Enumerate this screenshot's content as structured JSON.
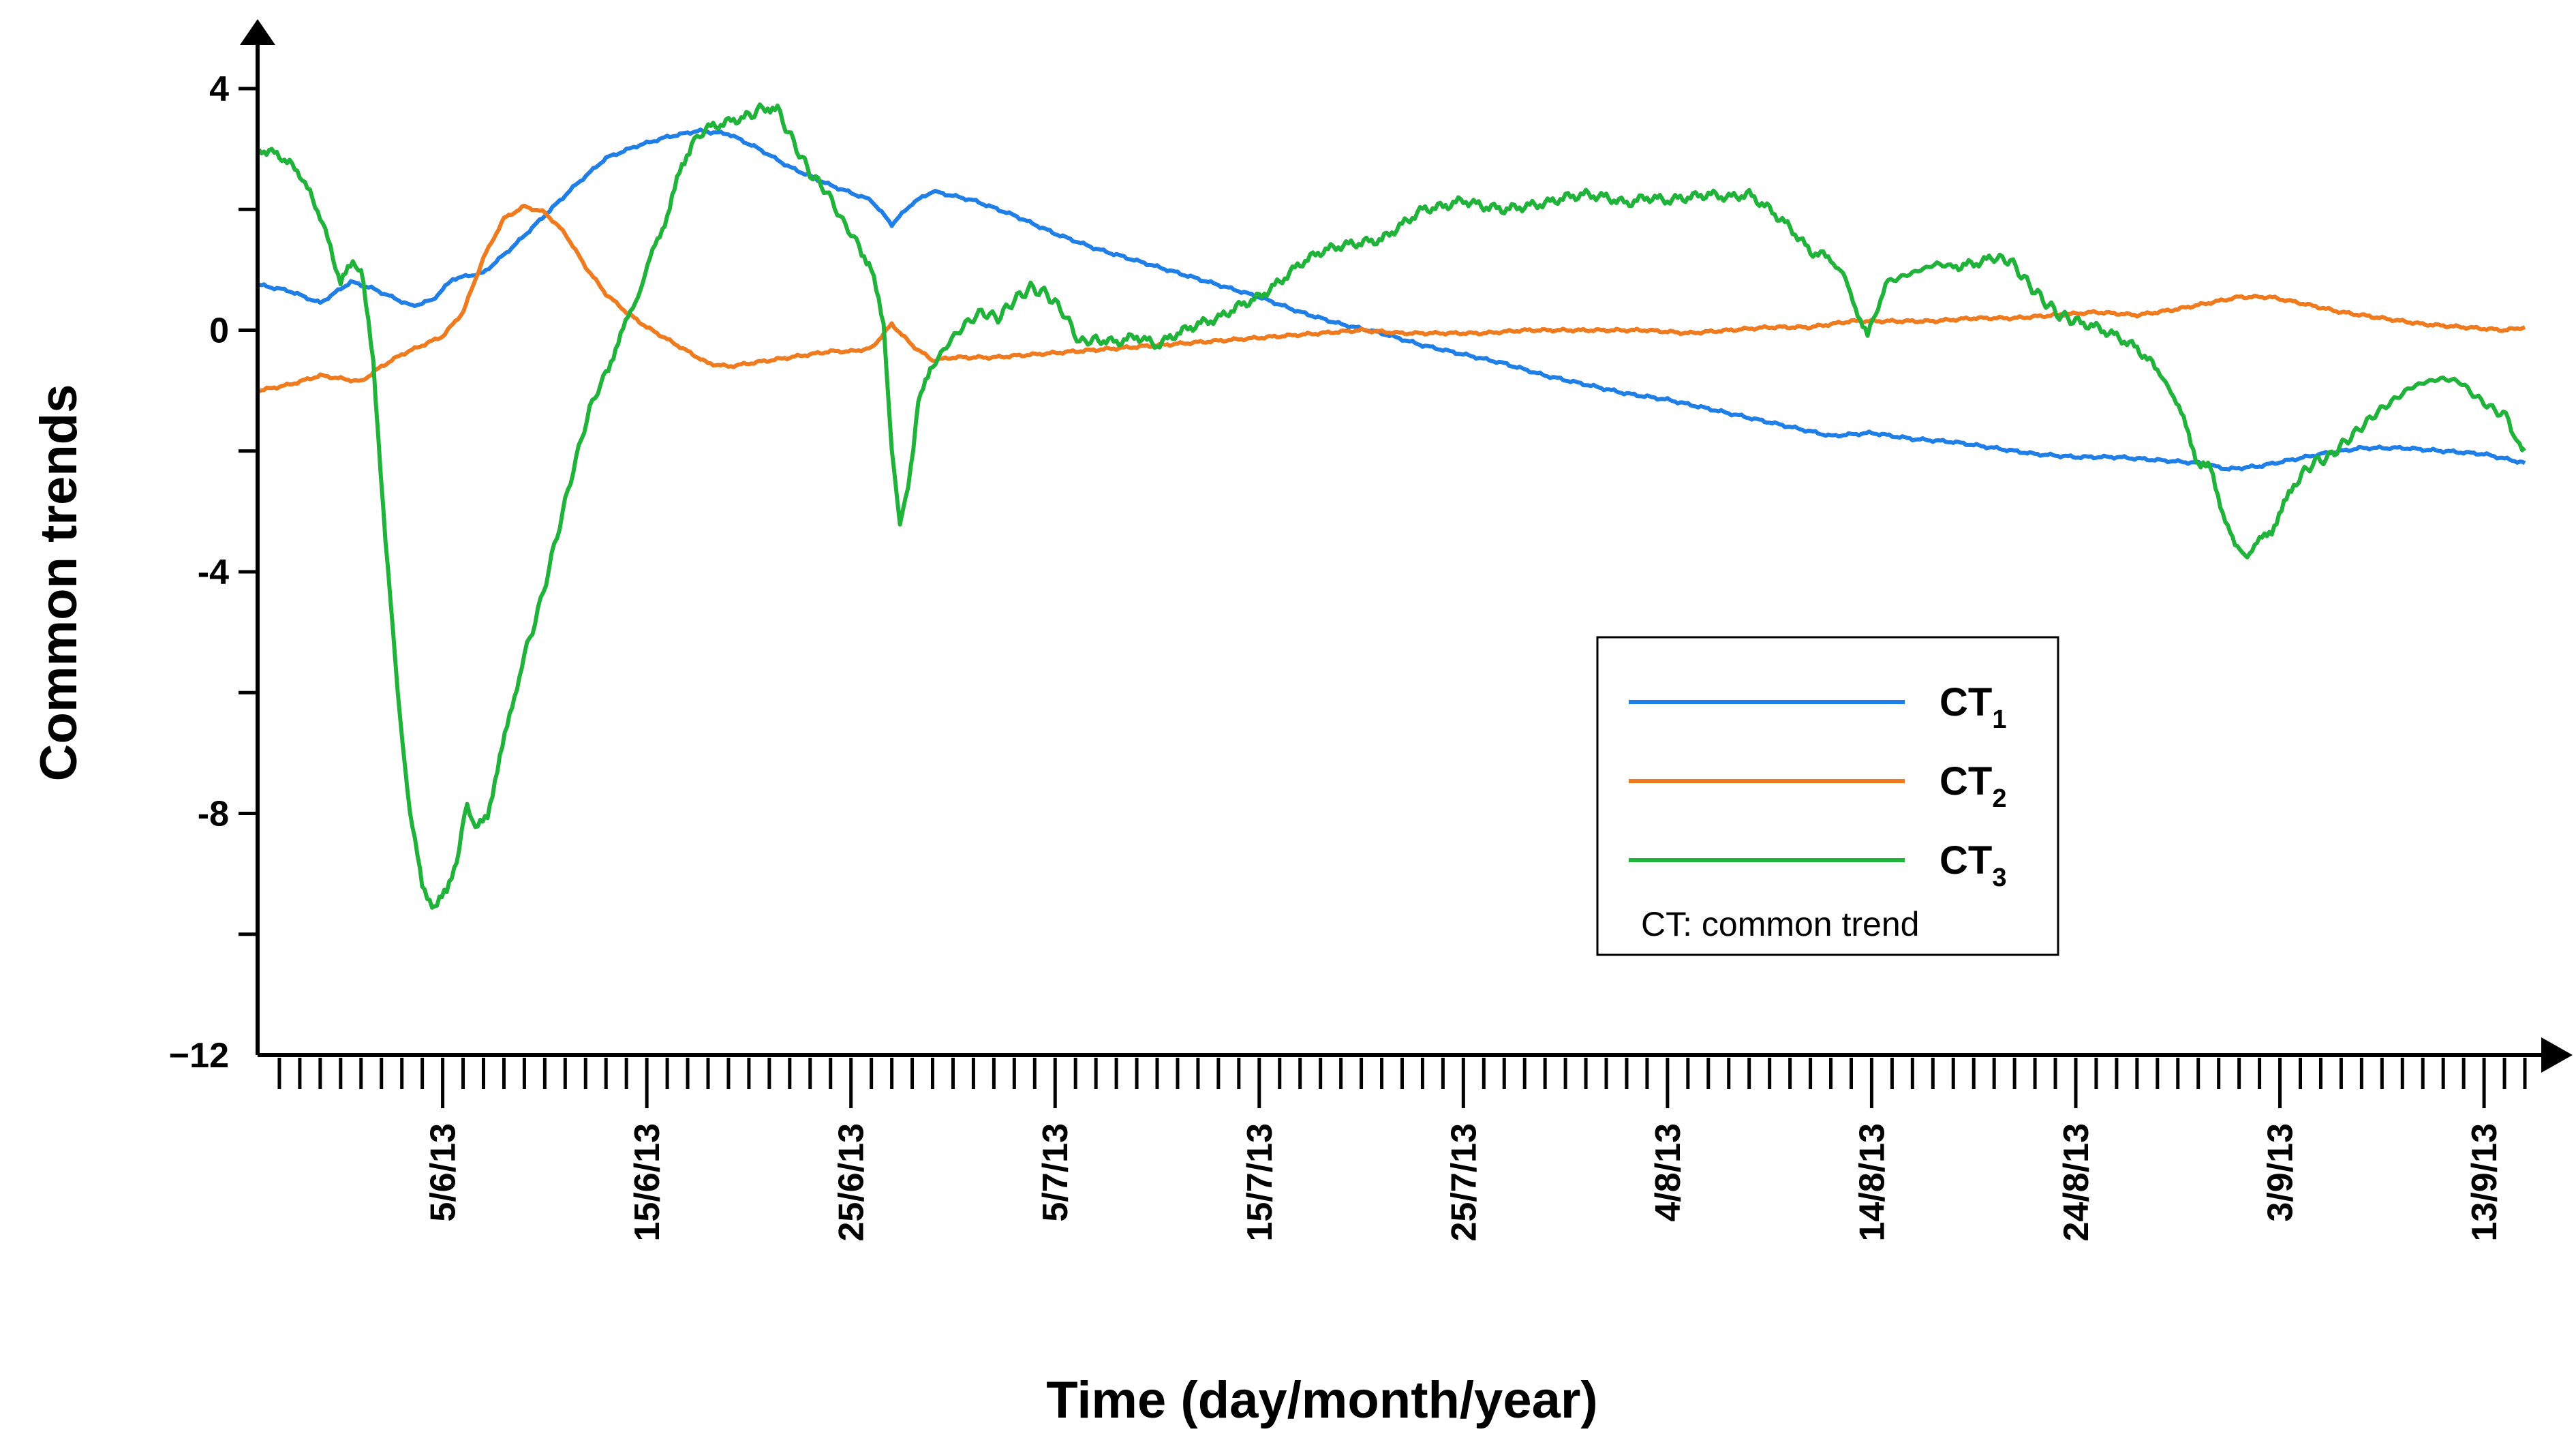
{
  "chart_data": {
    "type": "line",
    "title": "",
    "xlabel": "Time (day/month/year)",
    "ylabel": "Common trends",
    "ylim": [
      -12,
      4.5
    ],
    "yticks": [
      4,
      0,
      -4,
      -8,
      -12
    ],
    "ytick_labels": [
      "4",
      "0",
      "-4",
      "-8",
      "−12"
    ],
    "x_unit": "days since 27/5/13",
    "xlim": [
      0,
      111
    ],
    "xticks_major": [
      {
        "day": 9,
        "label": "5/6/13"
      },
      {
        "day": 19,
        "label": "15/6/13"
      },
      {
        "day": 29,
        "label": "25/6/13"
      },
      {
        "day": 39,
        "label": "5/7/13"
      },
      {
        "day": 49,
        "label": "15/7/13"
      },
      {
        "day": 59,
        "label": "25/7/13"
      },
      {
        "day": 69,
        "label": "4/8/13"
      },
      {
        "day": 79,
        "label": "14/8/13"
      },
      {
        "day": 89,
        "label": "24/8/13"
      },
      {
        "day": 99,
        "label": "3/9/13"
      },
      {
        "day": 109,
        "label": "13/9/13"
      }
    ],
    "legend_position": "lower-right",
    "legend_note": "CT: common trend",
    "series": [
      {
        "name": "CT",
        "subscript": "1",
        "color": "#1f7fe6",
        "points": [
          [
            0,
            0.75
          ],
          [
            1.5,
            0.65
          ],
          [
            3,
            0.45
          ],
          [
            4.5,
            0.8
          ],
          [
            5.5,
            0.7
          ],
          [
            6.5,
            0.55
          ],
          [
            7.5,
            0.4
          ],
          [
            8.5,
            0.5
          ],
          [
            9.5,
            0.85
          ],
          [
            11,
            0.95
          ],
          [
            12.5,
            1.4
          ],
          [
            14,
            1.9
          ],
          [
            15.5,
            2.4
          ],
          [
            17,
            2.85
          ],
          [
            18.5,
            3.05
          ],
          [
            20,
            3.2
          ],
          [
            21.5,
            3.3
          ],
          [
            23,
            3.25
          ],
          [
            24.5,
            3.0
          ],
          [
            26,
            2.7
          ],
          [
            28,
            2.4
          ],
          [
            30,
            2.15
          ],
          [
            31,
            1.75
          ],
          [
            32,
            2.1
          ],
          [
            33,
            2.3
          ],
          [
            35,
            2.15
          ],
          [
            37,
            1.9
          ],
          [
            39,
            1.6
          ],
          [
            41,
            1.35
          ],
          [
            43,
            1.15
          ],
          [
            45,
            0.95
          ],
          [
            47,
            0.75
          ],
          [
            49,
            0.55
          ],
          [
            51,
            0.3
          ],
          [
            53,
            0.1
          ],
          [
            55,
            -0.05
          ],
          [
            57,
            -0.25
          ],
          [
            59,
            -0.4
          ],
          [
            61,
            -0.55
          ],
          [
            63,
            -0.75
          ],
          [
            65,
            -0.9
          ],
          [
            67,
            -1.05
          ],
          [
            69,
            -1.15
          ],
          [
            71,
            -1.3
          ],
          [
            73,
            -1.45
          ],
          [
            75,
            -1.6
          ],
          [
            77,
            -1.75
          ],
          [
            79,
            -1.7
          ],
          [
            81,
            -1.8
          ],
          [
            83,
            -1.85
          ],
          [
            85,
            -1.95
          ],
          [
            87,
            -2.05
          ],
          [
            89,
            -2.1
          ],
          [
            91,
            -2.1
          ],
          [
            93,
            -2.15
          ],
          [
            95,
            -2.2
          ],
          [
            96.5,
            -2.3
          ],
          [
            98,
            -2.25
          ],
          [
            99.5,
            -2.15
          ],
          [
            101,
            -2.05
          ],
          [
            103,
            -1.95
          ],
          [
            105,
            -1.95
          ],
          [
            107,
            -2.0
          ],
          [
            109,
            -2.05
          ],
          [
            111,
            -2.2
          ]
        ]
      },
      {
        "name": "CT",
        "subscript": "2",
        "color": "#f07a1e",
        "points": [
          [
            0,
            -1.0
          ],
          [
            1.5,
            -0.9
          ],
          [
            3,
            -0.75
          ],
          [
            4,
            -0.8
          ],
          [
            5,
            -0.85
          ],
          [
            6,
            -0.6
          ],
          [
            7,
            -0.4
          ],
          [
            8,
            -0.25
          ],
          [
            9,
            -0.1
          ],
          [
            10,
            0.3
          ],
          [
            11,
            1.2
          ],
          [
            12,
            1.85
          ],
          [
            13,
            2.05
          ],
          [
            14,
            1.95
          ],
          [
            15,
            1.6
          ],
          [
            16,
            1.05
          ],
          [
            17,
            0.6
          ],
          [
            18,
            0.3
          ],
          [
            19,
            0.05
          ],
          [
            20,
            -0.15
          ],
          [
            21,
            -0.35
          ],
          [
            22,
            -0.55
          ],
          [
            23,
            -0.6
          ],
          [
            24,
            -0.55
          ],
          [
            25,
            -0.5
          ],
          [
            26,
            -0.45
          ],
          [
            27,
            -0.4
          ],
          [
            28,
            -0.35
          ],
          [
            29,
            -0.35
          ],
          [
            30,
            -0.3
          ],
          [
            31,
            0.1
          ],
          [
            32,
            -0.25
          ],
          [
            33,
            -0.5
          ],
          [
            34,
            -0.45
          ],
          [
            36,
            -0.45
          ],
          [
            38,
            -0.4
          ],
          [
            40,
            -0.35
          ],
          [
            42,
            -0.3
          ],
          [
            44,
            -0.25
          ],
          [
            46,
            -0.2
          ],
          [
            48,
            -0.15
          ],
          [
            50,
            -0.1
          ],
          [
            52,
            -0.05
          ],
          [
            54,
            0.0
          ],
          [
            56,
            -0.05
          ],
          [
            58,
            -0.05
          ],
          [
            60,
            -0.05
          ],
          [
            62,
            0.0
          ],
          [
            64,
            0.0
          ],
          [
            66,
            0.0
          ],
          [
            68,
            0.0
          ],
          [
            70,
            -0.05
          ],
          [
            72,
            0.0
          ],
          [
            74,
            0.05
          ],
          [
            76,
            0.05
          ],
          [
            78,
            0.15
          ],
          [
            80,
            0.15
          ],
          [
            82,
            0.15
          ],
          [
            84,
            0.2
          ],
          [
            86,
            0.2
          ],
          [
            88,
            0.25
          ],
          [
            90,
            0.3
          ],
          [
            92,
            0.25
          ],
          [
            94,
            0.35
          ],
          [
            95.5,
            0.45
          ],
          [
            97,
            0.55
          ],
          [
            98.5,
            0.55
          ],
          [
            100,
            0.45
          ],
          [
            102,
            0.3
          ],
          [
            104,
            0.2
          ],
          [
            106,
            0.1
          ],
          [
            108,
            0.05
          ],
          [
            110,
            0.0
          ],
          [
            111,
            0.05
          ]
        ]
      },
      {
        "name": "CT",
        "subscript": "3",
        "color": "#1fb33a",
        "points": [
          [
            0,
            3.0
          ],
          [
            1,
            2.9
          ],
          [
            2,
            2.6
          ],
          [
            3,
            1.9
          ],
          [
            4,
            0.8
          ],
          [
            4.6,
            1.1
          ],
          [
            5,
            1.0
          ],
          [
            5.6,
            -0.5
          ],
          [
            6.2,
            -3.5
          ],
          [
            6.8,
            -6.0
          ],
          [
            7.4,
            -8.0
          ],
          [
            8,
            -9.2
          ],
          [
            8.6,
            -9.55
          ],
          [
            9.2,
            -9.3
          ],
          [
            9.8,
            -8.6
          ],
          [
            10.2,
            -7.8
          ],
          [
            10.6,
            -8.3
          ],
          [
            11.2,
            -8.0
          ],
          [
            11.8,
            -7.1
          ],
          [
            12.4,
            -6.2
          ],
          [
            13,
            -5.4
          ],
          [
            13.8,
            -4.5
          ],
          [
            14.6,
            -3.4
          ],
          [
            15.4,
            -2.3
          ],
          [
            16.2,
            -1.3
          ],
          [
            17,
            -0.7
          ],
          [
            17.6,
            -0.2
          ],
          [
            18.2,
            0.3
          ],
          [
            18.8,
            0.8
          ],
          [
            19.4,
            1.4
          ],
          [
            20,
            1.9
          ],
          [
            20.6,
            2.6
          ],
          [
            21.2,
            3.1
          ],
          [
            22,
            3.35
          ],
          [
            23,
            3.45
          ],
          [
            24,
            3.55
          ],
          [
            24.8,
            3.7
          ],
          [
            25.4,
            3.65
          ],
          [
            26.2,
            3.1
          ],
          [
            27,
            2.6
          ],
          [
            27.8,
            2.3
          ],
          [
            28.6,
            1.8
          ],
          [
            29.4,
            1.4
          ],
          [
            30,
            1.0
          ],
          [
            30.6,
            0.1
          ],
          [
            31,
            -2.0
          ],
          [
            31.4,
            -3.2
          ],
          [
            31.8,
            -2.6
          ],
          [
            32.3,
            -1.2
          ],
          [
            33,
            -0.6
          ],
          [
            33.8,
            -0.2
          ],
          [
            34.6,
            0.1
          ],
          [
            35.4,
            0.3
          ],
          [
            36.2,
            0.2
          ],
          [
            37,
            0.5
          ],
          [
            37.8,
            0.7
          ],
          [
            38.6,
            0.6
          ],
          [
            39.4,
            0.3
          ],
          [
            40.2,
            -0.2
          ],
          [
            41,
            -0.15
          ],
          [
            42,
            -0.2
          ],
          [
            43,
            -0.1
          ],
          [
            44,
            -0.25
          ],
          [
            45,
            -0.05
          ],
          [
            46,
            0.1
          ],
          [
            47,
            0.2
          ],
          [
            48,
            0.4
          ],
          [
            49,
            0.55
          ],
          [
            50,
            0.8
          ],
          [
            51,
            1.1
          ],
          [
            52,
            1.3
          ],
          [
            53,
            1.4
          ],
          [
            54,
            1.45
          ],
          [
            55,
            1.5
          ],
          [
            56,
            1.75
          ],
          [
            57,
            2.0
          ],
          [
            58,
            2.05
          ],
          [
            59,
            2.15
          ],
          [
            60,
            2.05
          ],
          [
            61,
            2.0
          ],
          [
            62,
            2.05
          ],
          [
            63,
            2.1
          ],
          [
            64,
            2.2
          ],
          [
            65,
            2.25
          ],
          [
            66,
            2.2
          ],
          [
            67,
            2.1
          ],
          [
            68,
            2.2
          ],
          [
            69,
            2.15
          ],
          [
            70,
            2.2
          ],
          [
            71,
            2.25
          ],
          [
            72,
            2.2
          ],
          [
            73,
            2.25
          ],
          [
            74,
            2.0
          ],
          [
            75,
            1.7
          ],
          [
            76,
            1.3
          ],
          [
            77,
            1.2
          ],
          [
            77.6,
            0.9
          ],
          [
            78.2,
            0.4
          ],
          [
            78.8,
            -0.1
          ],
          [
            79.2,
            0.3
          ],
          [
            79.8,
            0.8
          ],
          [
            80.6,
            0.9
          ],
          [
            81.4,
            1.0
          ],
          [
            82.2,
            1.1
          ],
          [
            83,
            1.05
          ],
          [
            84,
            1.1
          ],
          [
            85,
            1.2
          ],
          [
            85.8,
            1.15
          ],
          [
            86.6,
            0.8
          ],
          [
            87.4,
            0.5
          ],
          [
            88.2,
            0.25
          ],
          [
            89,
            0.15
          ],
          [
            90,
            0.05
          ],
          [
            91,
            -0.1
          ],
          [
            92,
            -0.3
          ],
          [
            93,
            -0.65
          ],
          [
            93.8,
            -1.1
          ],
          [
            94.4,
            -1.6
          ],
          [
            95,
            -2.2
          ],
          [
            95.6,
            -2.3
          ],
          [
            96.2,
            -3.0
          ],
          [
            96.8,
            -3.6
          ],
          [
            97.4,
            -3.7
          ],
          [
            98,
            -3.5
          ],
          [
            98.6,
            -3.3
          ],
          [
            99.2,
            -2.9
          ],
          [
            99.8,
            -2.5
          ],
          [
            100.6,
            -2.2
          ],
          [
            101.4,
            -2.1
          ],
          [
            102.2,
            -1.85
          ],
          [
            103,
            -1.6
          ],
          [
            103.8,
            -1.35
          ],
          [
            104.6,
            -1.15
          ],
          [
            105.4,
            -0.95
          ],
          [
            106.2,
            -0.85
          ],
          [
            107,
            -0.8
          ],
          [
            107.8,
            -0.85
          ],
          [
            108.6,
            -1.1
          ],
          [
            109.4,
            -1.3
          ],
          [
            110.2,
            -1.45
          ],
          [
            110.6,
            -1.9
          ],
          [
            111,
            -1.95
          ]
        ]
      }
    ]
  }
}
